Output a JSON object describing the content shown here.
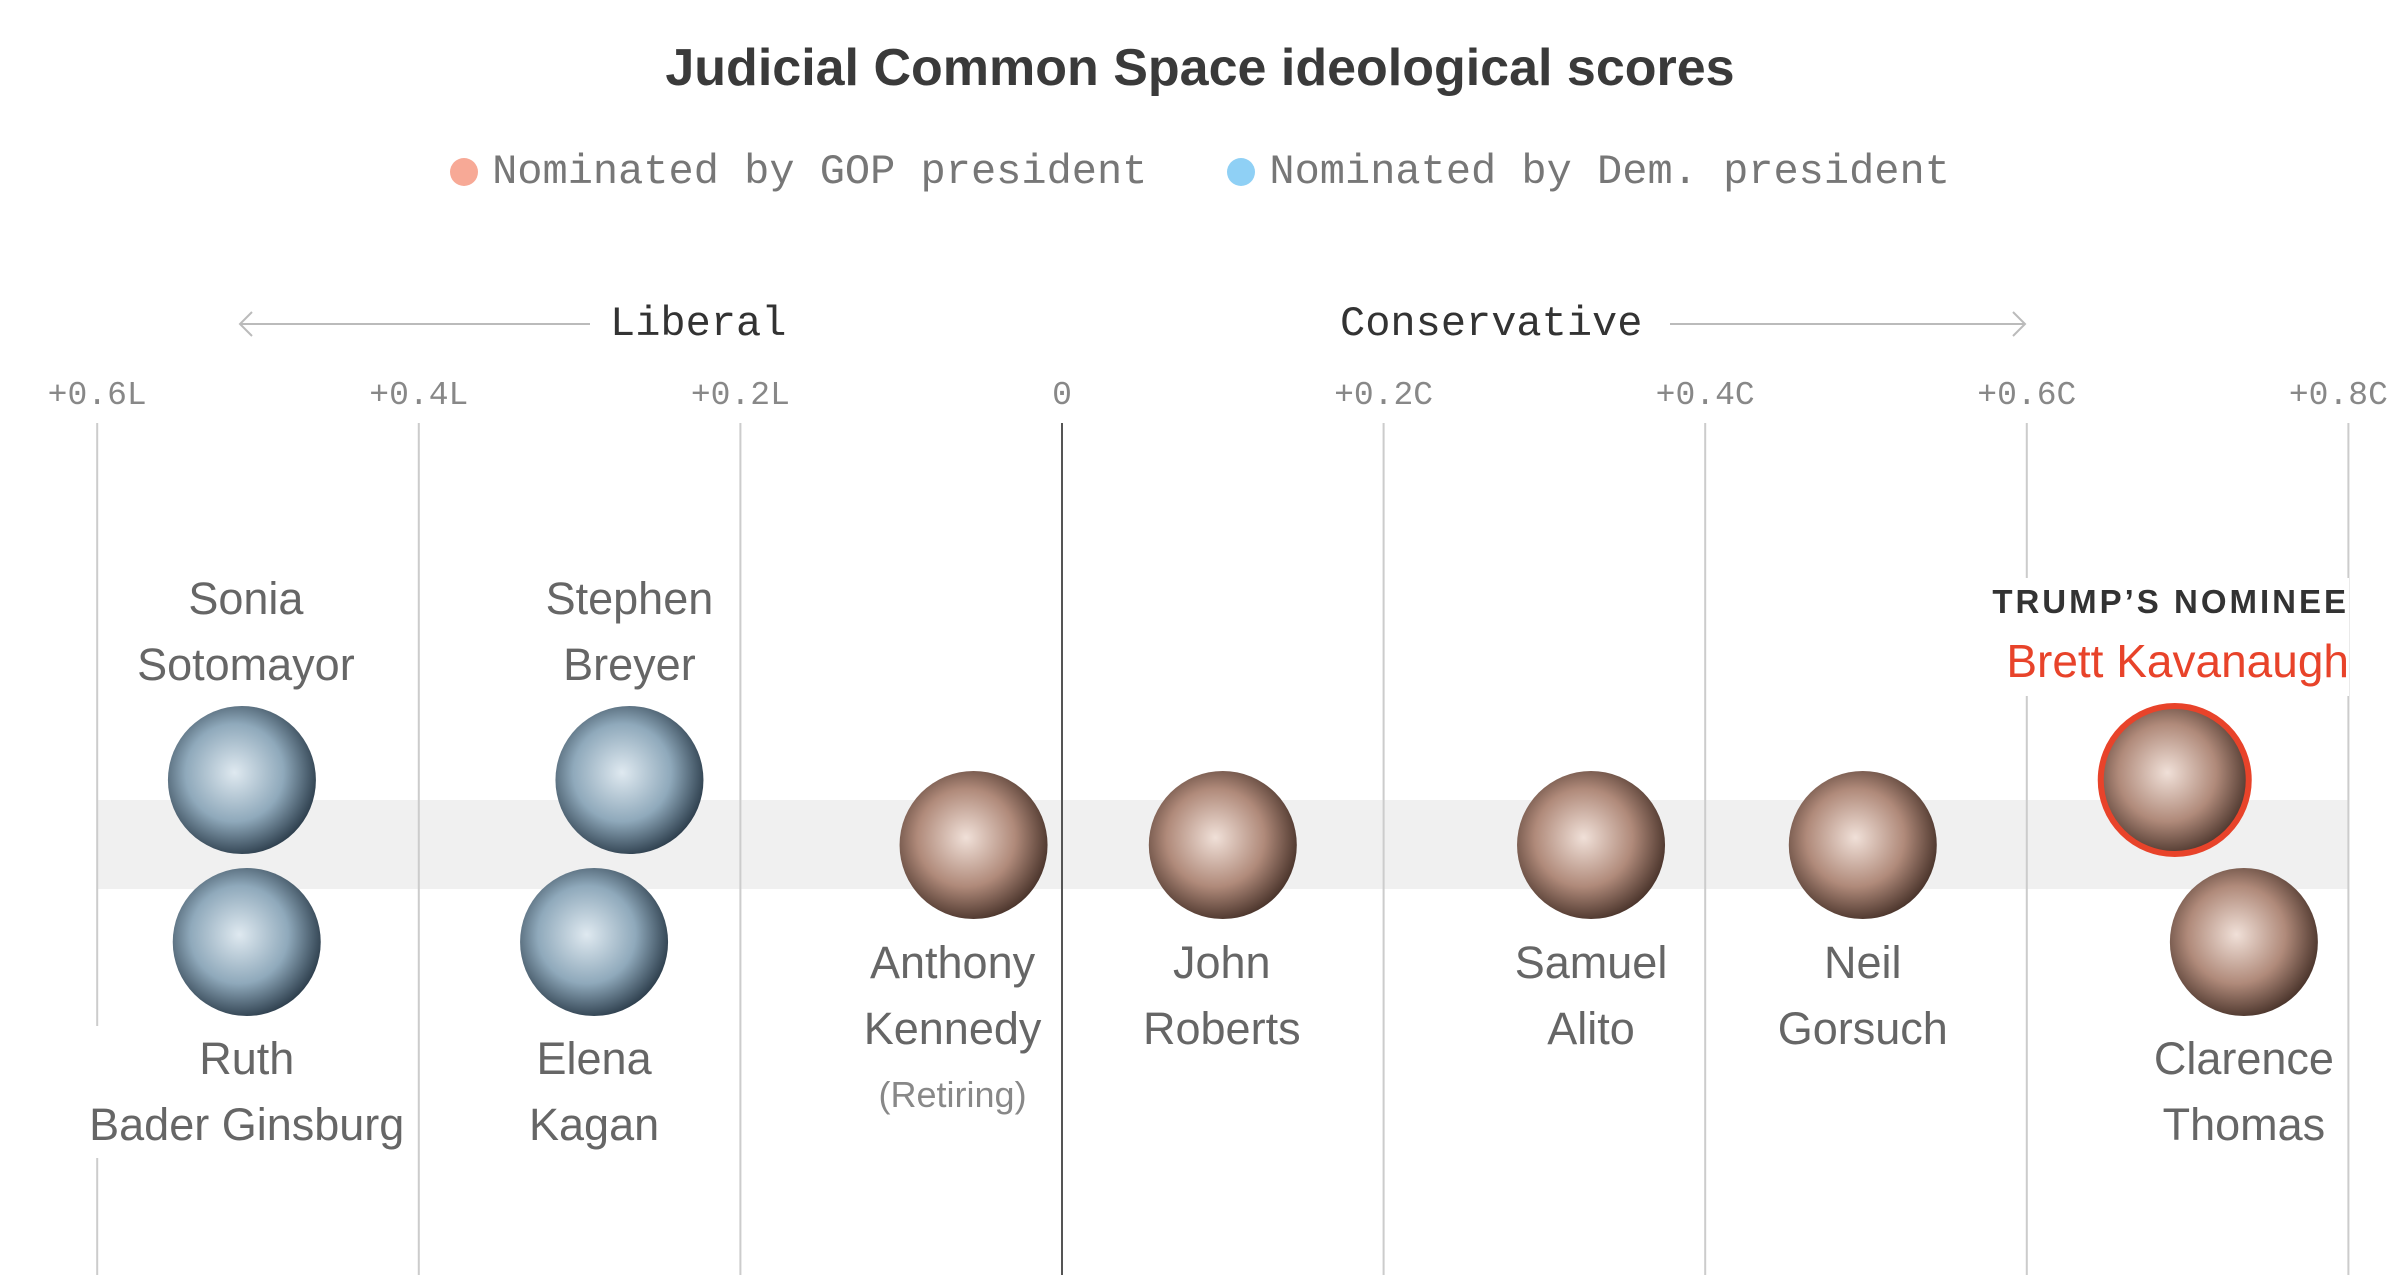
{
  "chart_data": {
    "type": "scatter",
    "title": "Judicial Common Space ideological scores",
    "legend": [
      {
        "label": "Nominated by GOP president",
        "color": "#f7a996"
      },
      {
        "label": "Nominated by Dem. president",
        "color": "#8fd0f5"
      }
    ],
    "legend_placement": "top-center",
    "direction_labels": {
      "left": "Liberal",
      "right": "Conservative"
    },
    "xlim": [
      -0.6,
      0.8
    ],
    "ticks": [
      {
        "value": -0.6,
        "label": "+0.6L"
      },
      {
        "value": -0.4,
        "label": "+0.4L"
      },
      {
        "value": -0.2,
        "label": "+0.2L"
      },
      {
        "value": 0,
        "label": "0"
      },
      {
        "value": 0.2,
        "label": "+0.2C"
      },
      {
        "value": 0.4,
        "label": "+0.4C"
      },
      {
        "value": 0.6,
        "label": "+0.6C"
      },
      {
        "value": 0.8,
        "label": "+0.8C"
      }
    ],
    "grid": true,
    "points": [
      {
        "name": [
          "Sonia",
          "Sotomayor"
        ],
        "score": -0.51,
        "party": "Dem"
      },
      {
        "name": [
          "Ruth",
          "Bader Ginsburg"
        ],
        "score": -0.507,
        "party": "Dem"
      },
      {
        "name": [
          "Stephen",
          "Breyer"
        ],
        "score": -0.269,
        "party": "Dem"
      },
      {
        "name": [
          "Elena",
          "Kagan"
        ],
        "score": -0.291,
        "party": "Dem"
      },
      {
        "name": [
          "Anthony",
          "Kennedy"
        ],
        "note": "(Retiring)",
        "score": -0.055,
        "party": "GOP"
      },
      {
        "name": [
          "John",
          "Roberts"
        ],
        "score": 0.1,
        "party": "GOP"
      },
      {
        "name": [
          "Samuel",
          "Alito"
        ],
        "score": 0.329,
        "party": "GOP"
      },
      {
        "name": [
          "Neil",
          "Gorsuch"
        ],
        "score": 0.498,
        "party": "GOP"
      },
      {
        "name": [
          "Clarence",
          "Thomas"
        ],
        "score": 0.735,
        "party": "GOP"
      },
      {
        "name": [
          "Brett Kavanaugh"
        ],
        "score": 0.692,
        "party": "GOP",
        "tag": "TRUMP’S NOMINEE"
      }
    ],
    "highlight_color": "#e8432a"
  }
}
